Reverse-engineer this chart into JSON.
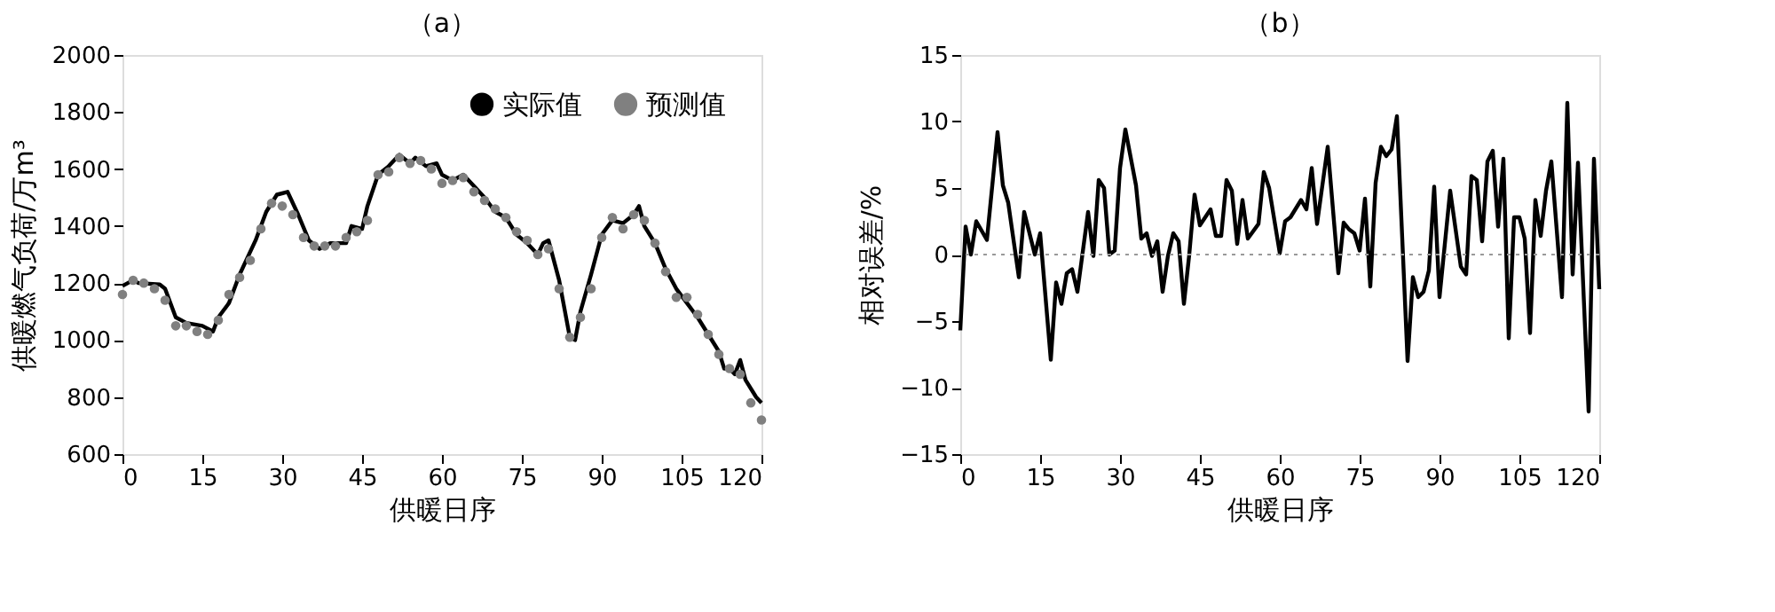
{
  "chart_data": [
    {
      "type": "line",
      "title": "（a）",
      "xlabel": "供暖日序",
      "ylabel": "供暖燃气负荷/万m³",
      "xlim": [
        0,
        120
      ],
      "xticks": [
        0,
        15,
        30,
        45,
        60,
        75,
        90,
        105,
        120
      ],
      "ylim": [
        600,
        2000
      ],
      "yticks": [
        600,
        800,
        1000,
        1200,
        1400,
        1600,
        1800,
        2000
      ],
      "grid": false,
      "legend": "top right",
      "series": [
        {
          "name": "实际值",
          "type": "line",
          "color": "#000000",
          "line_style": "solid",
          "x": [
            0,
            2,
            3,
            7,
            8,
            10,
            12,
            15,
            17,
            18,
            20,
            22,
            25,
            27,
            29,
            31,
            33,
            35,
            37,
            39,
            42,
            43,
            45,
            46,
            48,
            50,
            52,
            54,
            55,
            57,
            59,
            60,
            62,
            64,
            66,
            68,
            70,
            72,
            74,
            76,
            78,
            79,
            80,
            82,
            84,
            85,
            86,
            88,
            90,
            92,
            94,
            96,
            97,
            98,
            100,
            102,
            104,
            106,
            108,
            110,
            112,
            113,
            114,
            115,
            116,
            117,
            119,
            120
          ],
          "values": [
            1190,
            1210,
            1200,
            1195,
            1180,
            1080,
            1060,
            1050,
            1030,
            1080,
            1130,
            1230,
            1350,
            1450,
            1510,
            1520,
            1440,
            1350,
            1320,
            1340,
            1340,
            1400,
            1390,
            1470,
            1580,
            1610,
            1650,
            1620,
            1640,
            1610,
            1620,
            1580,
            1560,
            1580,
            1540,
            1500,
            1450,
            1430,
            1370,
            1340,
            1300,
            1340,
            1350,
            1210,
            1010,
            1000,
            1100,
            1230,
            1370,
            1420,
            1410,
            1440,
            1470,
            1400,
            1340,
            1250,
            1180,
            1130,
            1080,
            1020,
            960,
            900,
            900,
            880,
            930,
            860,
            800,
            780
          ]
        },
        {
          "name": "预测值",
          "type": "scatter",
          "marker": "circle",
          "color": "#808080",
          "x": [
            0,
            2,
            4,
            6,
            8,
            10,
            12,
            14,
            16,
            18,
            20,
            22,
            24,
            26,
            28,
            30,
            32,
            34,
            36,
            38,
            40,
            42,
            44,
            46,
            48,
            50,
            52,
            54,
            56,
            58,
            60,
            62,
            64,
            66,
            68,
            70,
            72,
            74,
            76,
            78,
            80,
            82,
            84,
            86,
            88,
            90,
            92,
            94,
            96,
            98,
            100,
            102,
            104,
            106,
            108,
            110,
            112,
            114,
            116,
            118,
            120
          ],
          "values": [
            1160,
            1210,
            1200,
            1180,
            1140,
            1050,
            1050,
            1030,
            1020,
            1070,
            1160,
            1220,
            1280,
            1390,
            1480,
            1470,
            1440,
            1360,
            1330,
            1330,
            1330,
            1360,
            1380,
            1420,
            1580,
            1590,
            1640,
            1620,
            1630,
            1600,
            1550,
            1560,
            1570,
            1520,
            1490,
            1460,
            1430,
            1380,
            1350,
            1300,
            1320,
            1180,
            1010,
            1080,
            1180,
            1360,
            1430,
            1390,
            1440,
            1420,
            1340,
            1240,
            1150,
            1150,
            1090,
            1020,
            950,
            900,
            880,
            780,
            720
          ]
        }
      ]
    },
    {
      "type": "line",
      "title": "（b）",
      "xlabel": "供暖日序",
      "ylabel": "相对误差/%",
      "xlim": [
        0,
        120
      ],
      "xticks": [
        0,
        15,
        30,
        45,
        60,
        75,
        90,
        105,
        120
      ],
      "ylim": [
        -15,
        15
      ],
      "yticks": [
        -15,
        -10,
        -5,
        0,
        5,
        10,
        15
      ],
      "grid": false,
      "legend": false,
      "ref_lines": [
        {
          "axis": "y",
          "value": 0,
          "color": "#999999",
          "line_style": "dotted"
        }
      ],
      "series": [
        {
          "type": "line",
          "color": "#000000",
          "line_style": "solid",
          "x": [
            0,
            1,
            2,
            3,
            5,
            7,
            8,
            9,
            11,
            12,
            14,
            15,
            17,
            18,
            19,
            20,
            21,
            22,
            24,
            25,
            26,
            27,
            28,
            29,
            30,
            31,
            33,
            34,
            35,
            36,
            37,
            38,
            39,
            40,
            41,
            42,
            43,
            44,
            45,
            47,
            48,
            49,
            50,
            51,
            52,
            53,
            54,
            56,
            57,
            58,
            60,
            61,
            62,
            64,
            65,
            66,
            67,
            69,
            71,
            72,
            73,
            74,
            75,
            76,
            77,
            78,
            79,
            80,
            81,
            82,
            84,
            85,
            86,
            87,
            88,
            89,
            90,
            92,
            94,
            95,
            96,
            97,
            98,
            99,
            100,
            101,
            102,
            103,
            104,
            105,
            106,
            107,
            108,
            109,
            110,
            111,
            113,
            114,
            115,
            116,
            118,
            119,
            120
          ],
          "values": [
            -5.7,
            2.1,
            0,
            2.5,
            1.1,
            9.2,
            5.2,
            3.9,
            -1.7,
            3.2,
            0,
            1.6,
            -7.9,
            -2.1,
            -3.7,
            -1.4,
            -1.1,
            -2.8,
            3.2,
            -0.1,
            5.6,
            5.0,
            0,
            0.3,
            6.5,
            9.4,
            5.2,
            1.2,
            1.6,
            -0.1,
            1.0,
            -2.8,
            -0.1,
            1.6,
            1.0,
            -3.7,
            0,
            4.5,
            2.2,
            3.4,
            1.4,
            1.4,
            5.6,
            4.8,
            0.8,
            4.1,
            1.2,
            2.3,
            6.2,
            5.0,
            0.1,
            2.5,
            2.8,
            4.1,
            3.4,
            6.5,
            2.3,
            8.1,
            -1.4,
            2.4,
            1.9,
            1.6,
            0.3,
            4.2,
            -2.4,
            5.4,
            8.1,
            7.4,
            7.9,
            10.4,
            -8.0,
            -1.7,
            -3.2,
            -2.8,
            -1.2,
            5.1,
            -3.2,
            4.8,
            -0.9,
            -1.5,
            5.9,
            5.6,
            1.0,
            7.0,
            7.8,
            2.1,
            7.2,
            -6.3,
            2.8,
            2.8,
            1.2,
            -5.9,
            4.1,
            1.4,
            4.8,
            7.0,
            -3.2,
            11.4,
            -1.5,
            6.9,
            -11.8,
            7.2,
            -2.6
          ]
        }
      ]
    }
  ]
}
